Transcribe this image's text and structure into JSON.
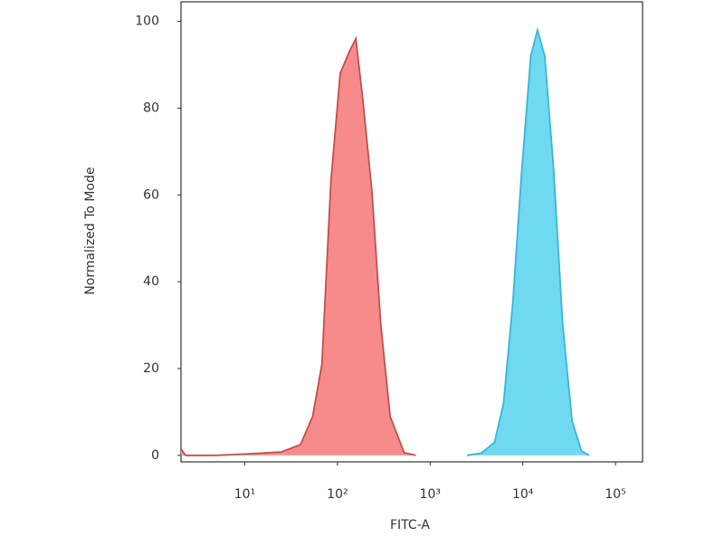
{
  "chart_data": {
    "type": "area",
    "xlabel": "FITC-A",
    "ylabel": "Normalized To Mode",
    "xscale": "log",
    "xlim": [
      2.05,
      196000
    ],
    "ylim": [
      -1.5,
      104.5
    ],
    "xticks": [
      {
        "value": 10,
        "label": "10¹"
      },
      {
        "value": 100,
        "label": "10²"
      },
      {
        "value": 1000,
        "label": "10³"
      },
      {
        "value": 10000,
        "label": "10⁴"
      },
      {
        "value": 100000,
        "label": "10⁵"
      }
    ],
    "yticks": [
      0,
      20,
      40,
      60,
      80,
      100
    ],
    "series": [
      {
        "color": "#f78b8b",
        "edge_color": "#c0504d",
        "x": [
          2.05,
          2.3,
          5,
          15,
          25,
          40,
          54,
          68,
          85,
          107,
          134,
          158,
          188,
          235,
          294,
          370,
          525,
          700
        ],
        "values": [
          1.5,
          0,
          0,
          0.5,
          0.8,
          2.5,
          9,
          21,
          63,
          88,
          93,
          96,
          82,
          61,
          30,
          9,
          0.6,
          0
        ]
      },
      {
        "color": "#6fd9f2",
        "edge_color": "#3ab5d6",
        "x": [
          2500,
          3550,
          4950,
          6200,
          7800,
          9700,
          12200,
          14400,
          17300,
          21500,
          27000,
          34000,
          43000,
          52000
        ],
        "values": [
          0,
          0.5,
          3,
          12,
          35,
          65,
          92,
          98,
          92,
          66,
          30,
          8,
          1,
          0
        ]
      }
    ]
  }
}
